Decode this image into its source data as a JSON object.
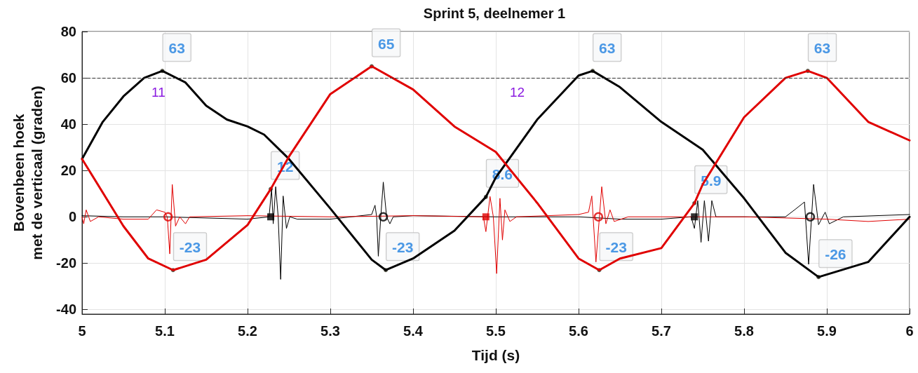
{
  "chart_data": {
    "type": "line",
    "title": "Sprint 5, deelnemer 1",
    "xlabel": "Tijd (s)",
    "ylabel": "Bovenbeen hoek\nmet de verticaal (graden)",
    "xlim": [
      5,
      6
    ],
    "xticks": [
      5,
      5.1,
      5.2,
      5.3,
      5.4,
      5.5,
      5.6,
      5.7,
      5.8,
      5.9,
      6
    ],
    "ylim": [
      -42,
      80
    ],
    "yticks": [
      -40,
      -20,
      0,
      20,
      40,
      60,
      80
    ],
    "grid": true,
    "line_style": "solid",
    "ref_lines": [
      {
        "axis": "y",
        "value": 60,
        "label": null,
        "color": "#333333",
        "line_style": "dashed"
      }
    ],
    "annotations": [
      "11",
      "12"
    ],
    "series": [
      {
        "color": "#000000",
        "x": [
          5.0,
          5.05,
          5.1,
          5.15,
          5.2,
          5.226,
          5.229,
          5.231,
          5.234,
          5.237,
          5.24,
          5.243,
          5.247,
          5.251,
          5.26,
          5.3,
          5.35,
          5.354,
          5.356,
          5.358,
          5.361,
          5.364,
          5.368,
          5.372,
          5.376,
          5.4,
          5.5,
          5.6,
          5.65,
          5.7,
          5.736,
          5.74,
          5.744,
          5.748,
          5.752,
          5.757,
          5.761,
          5.766,
          5.8,
          5.85,
          5.861,
          5.873,
          5.878,
          5.884,
          5.89,
          5.898,
          5.903,
          5.92,
          6.0
        ],
        "values": [
          0.5,
          0,
          0,
          -0.5,
          -1,
          0,
          12,
          -3,
          13,
          0,
          -27,
          9,
          -5,
          0,
          -1,
          -1,
          1,
          5,
          0,
          -17,
          0,
          15,
          0,
          -3,
          0,
          0.5,
          0,
          0,
          -1,
          -1,
          0,
          -5,
          7,
          -11,
          7,
          -10.5,
          7,
          0,
          0,
          0,
          3,
          6.4,
          -20.5,
          14,
          -3.4,
          2,
          -3,
          0,
          1
        ]
      },
      {
        "color": "#e00000",
        "x": [
          5.0,
          5.002,
          5.005,
          5.01,
          5.02,
          5.05,
          5.08,
          5.09,
          5.1,
          5.103,
          5.106,
          5.109,
          5.113,
          5.118,
          5.125,
          5.13,
          5.2,
          5.3,
          5.4,
          5.485,
          5.488,
          5.493,
          5.497,
          5.501,
          5.505,
          5.508,
          5.511,
          5.517,
          5.525,
          5.6,
          5.612,
          5.616,
          5.621,
          5.628,
          5.633,
          5.638,
          5.643,
          5.66,
          5.7,
          5.8,
          5.9,
          5.95,
          6.0
        ],
        "values": [
          0,
          -3,
          3,
          -2,
          0,
          -1,
          -1,
          3,
          2,
          0,
          -16,
          14,
          -4,
          0,
          -3,
          0,
          0.5,
          0,
          0.5,
          0,
          -6.4,
          8.8,
          0,
          -24.5,
          8,
          -10,
          3,
          -2,
          0,
          1,
          2,
          9,
          -19.5,
          13,
          -3,
          3,
          -2,
          0,
          0,
          0,
          -1,
          -2,
          -1
        ]
      },
      {
        "color": "#000000",
        "x": [
          5.0,
          5.025,
          5.05,
          5.075,
          5.097,
          5.125,
          5.15,
          5.175,
          5.2,
          5.22,
          5.25,
          5.3,
          5.35,
          5.367,
          5.4,
          5.45,
          5.488,
          5.5,
          5.55,
          5.6,
          5.617,
          5.65,
          5.7,
          5.75,
          5.8,
          5.85,
          5.89,
          5.95,
          6.0
        ],
        "values": [
          25,
          41,
          52,
          60,
          63,
          58,
          48,
          42,
          39,
          35.5,
          25,
          3.6,
          -18.5,
          -23,
          -18,
          -6,
          8.6,
          17,
          42,
          61,
          63,
          56,
          41,
          29,
          8,
          -15.5,
          -26,
          -19.5,
          0
        ],
        "value_labels": [
          null,
          null,
          null,
          null,
          "63",
          null,
          null,
          null,
          null,
          null,
          null,
          null,
          null,
          "-23",
          null,
          null,
          "8.6",
          null,
          null,
          null,
          "63",
          null,
          null,
          null,
          null,
          null,
          "-26",
          null,
          null
        ]
      },
      {
        "color": "#e00000",
        "x": [
          5.0,
          5.05,
          5.08,
          5.11,
          5.15,
          5.2,
          5.228,
          5.25,
          5.3,
          5.35,
          5.4,
          5.45,
          5.5,
          5.55,
          5.6,
          5.625,
          5.65,
          5.7,
          5.74,
          5.75,
          5.8,
          5.85,
          5.877,
          5.9,
          5.95,
          6.0
        ],
        "values": [
          25,
          -4,
          -18,
          -23,
          -18.5,
          -3.5,
          12,
          26,
          53,
          65,
          55,
          39,
          28,
          6,
          -18,
          -23,
          -18,
          -13.5,
          5.9,
          14,
          43,
          60,
          63,
          60,
          41,
          33
        ],
        "value_labels": [
          null,
          null,
          null,
          "-23",
          null,
          null,
          "12",
          null,
          null,
          "65",
          null,
          null,
          null,
          null,
          null,
          "-23",
          null,
          null,
          "5.9",
          null,
          null,
          null,
          "63",
          null,
          null,
          null
        ]
      },
      {
        "type": "scatter",
        "marker": "circle",
        "color": "#e00000",
        "x": [
          5.104,
          5.624
        ],
        "values": [
          0,
          0
        ]
      },
      {
        "type": "scatter",
        "marker": "circle",
        "color": "#000000",
        "x": [
          5.364,
          5.88
        ],
        "values": [
          0,
          0
        ]
      },
      {
        "type": "scatter",
        "marker": "square",
        "color": "#000000",
        "x": [
          5.228,
          5.74
        ],
        "values": [
          0,
          0
        ]
      },
      {
        "type": "scatter",
        "marker": "square",
        "color": "#e00000",
        "x": [
          5.488
        ],
        "values": [
          0
        ]
      }
    ]
  }
}
